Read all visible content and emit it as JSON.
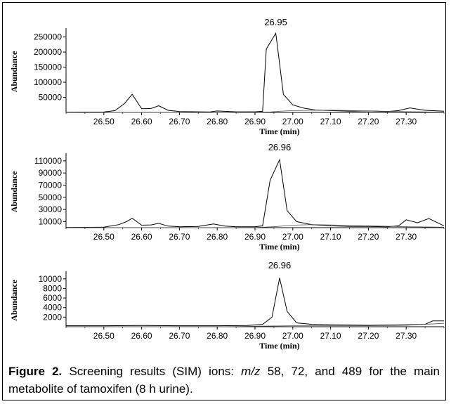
{
  "chart_data": [
    {
      "type": "line",
      "xlabel": "Time (min)",
      "ylabel": "Abundance",
      "xlim": [
        26.4,
        27.4
      ],
      "ylim": [
        0,
        270000
      ],
      "x_ticks": [
        "26.50",
        "26.60",
        "26.70",
        "26.80",
        "26.90",
        "27.00",
        "27.10",
        "27.20",
        "27.30"
      ],
      "y_ticks": [
        "50000",
        "100000",
        "150000",
        "200000",
        "250000"
      ],
      "peak_label": "26.95",
      "peak_x": 26.955,
      "series": [
        {
          "x": [
            26.4,
            26.45,
            26.5,
            26.53,
            26.555,
            26.575,
            26.6,
            26.625,
            26.645,
            26.67,
            26.7,
            26.75,
            26.78,
            26.8,
            26.85,
            26.9,
            26.92,
            26.93,
            26.955,
            26.975,
            27.0,
            27.03,
            27.06,
            27.1,
            27.15,
            27.2,
            27.25,
            27.28,
            27.31,
            27.35,
            27.4
          ],
          "y": [
            1000,
            1200,
            1500,
            6000,
            30000,
            60000,
            12000,
            13000,
            22000,
            7000,
            3000,
            2000,
            1500,
            5000,
            2000,
            2000,
            4000,
            210000,
            262000,
            60000,
            25000,
            14000,
            8000,
            6000,
            4000,
            5000,
            3000,
            6000,
            15000,
            7000,
            4000
          ]
        },
        {
          "x": [
            26.4,
            26.5,
            26.6,
            26.7,
            26.8,
            26.9,
            26.94,
            26.97,
            27.0,
            27.05,
            27.1,
            27.2,
            27.3,
            27.4
          ],
          "y": [
            0,
            0,
            0,
            0,
            0,
            500,
            1500,
            4500,
            6000,
            7000,
            7500,
            5000,
            2500,
            1000
          ]
        }
      ]
    },
    {
      "type": "line",
      "xlabel": "Time (min)",
      "ylabel": "Abundance",
      "xlim": [
        26.4,
        27.4
      ],
      "ylim": [
        0,
        118000
      ],
      "x_ticks": [
        "26.50",
        "26.60",
        "26.70",
        "26.80",
        "26.90",
        "27.00",
        "27.10",
        "27.20",
        "27.30"
      ],
      "y_ticks": [
        "10000",
        "30000",
        "50000",
        "70000",
        "90000",
        "110000"
      ],
      "peak_label": "26.96",
      "peak_x": 26.965,
      "series": [
        {
          "x": [
            26.4,
            26.45,
            26.5,
            26.54,
            26.56,
            26.575,
            26.6,
            26.625,
            26.645,
            26.67,
            26.7,
            26.75,
            26.79,
            26.82,
            26.85,
            26.9,
            26.92,
            26.94,
            26.965,
            26.985,
            27.01,
            27.05,
            27.1,
            27.15,
            27.2,
            27.25,
            27.28,
            27.3,
            27.33,
            27.36,
            27.4
          ],
          "y": [
            500,
            600,
            800,
            5000,
            10000,
            15500,
            4000,
            4500,
            7000,
            2500,
            1500,
            2000,
            6000,
            2500,
            1500,
            1500,
            3000,
            78000,
            112000,
            28000,
            10000,
            5000,
            3000,
            2000,
            2000,
            1500,
            3000,
            13000,
            8000,
            15000,
            3000
          ]
        },
        {
          "x": [
            26.4,
            26.5,
            26.6,
            26.7,
            26.8,
            26.9,
            26.95,
            27.0,
            27.05,
            27.1,
            27.2,
            27.3,
            27.4
          ],
          "y": [
            0,
            0,
            0,
            0,
            0,
            300,
            1500,
            4000,
            5000,
            4500,
            3000,
            1500,
            800
          ]
        }
      ]
    },
    {
      "type": "line",
      "xlabel": "Time (min)",
      "ylabel": "Abundance",
      "xlim": [
        26.4,
        27.4
      ],
      "ylim": [
        0,
        11000
      ],
      "x_ticks": [
        "26.50",
        "26.60",
        "26.70",
        "26.80",
        "26.90",
        "27.00",
        "27.10",
        "27.20",
        "27.30"
      ],
      "y_ticks": [
        "2000",
        "4000",
        "6000",
        "8000",
        "10000"
      ],
      "peak_label": "26.96",
      "peak_x": 26.965,
      "series": [
        {
          "x": [
            26.4,
            26.5,
            26.6,
            26.7,
            26.8,
            26.88,
            26.92,
            26.945,
            26.965,
            26.985,
            27.01,
            27.05,
            27.1,
            27.2,
            27.3,
            27.35,
            27.37,
            27.4
          ],
          "y": [
            200,
            200,
            250,
            200,
            200,
            250,
            500,
            2000,
            10200,
            3200,
            800,
            500,
            400,
            300,
            400,
            500,
            1200,
            1200
          ]
        },
        {
          "x": [
            26.4,
            26.5,
            26.6,
            26.7,
            26.8,
            26.9,
            27.0,
            27.1,
            27.2,
            27.3,
            27.4
          ],
          "y": [
            0,
            0,
            0,
            0,
            0,
            100,
            200,
            200,
            200,
            300,
            700
          ]
        }
      ]
    }
  ],
  "caption": {
    "label": "Figure 2.",
    "text_before_mz": " Screening results (SIM) ions: ",
    "mz": "m/z",
    "text_after_mz": " 58, 72, and 489 for the main metabolite of tamoxifen (8 h urine)."
  }
}
